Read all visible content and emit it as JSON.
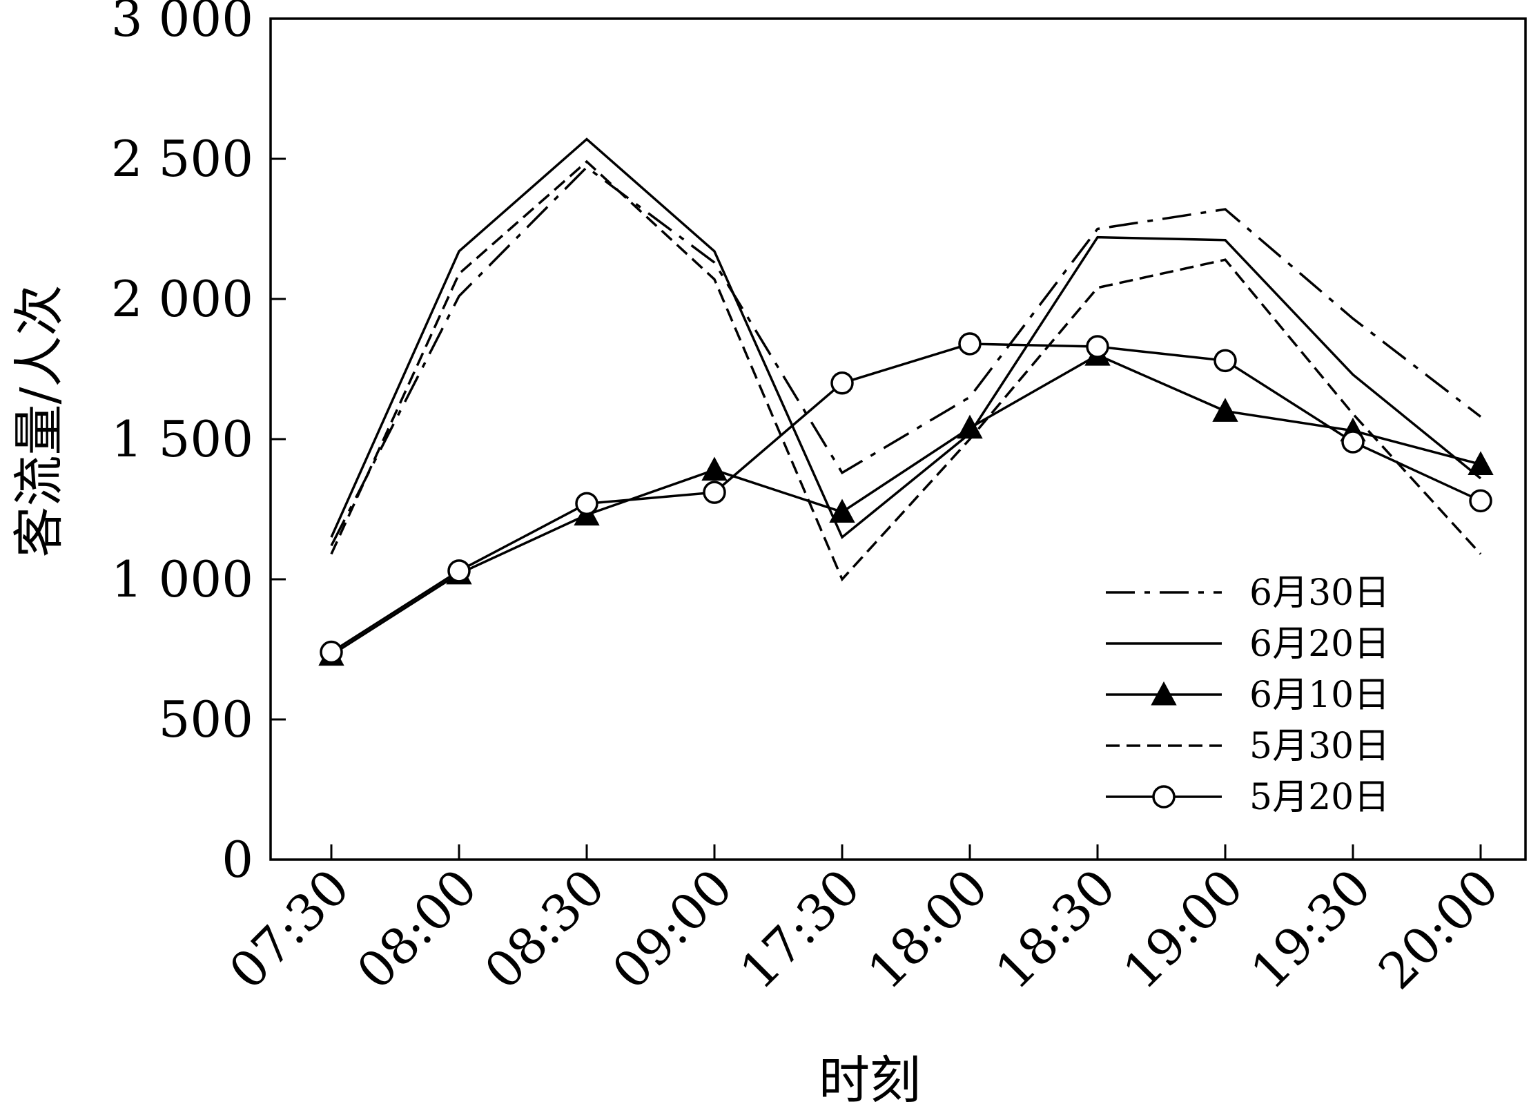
{
  "chart_data": {
    "type": "line",
    "title": "",
    "xlabel": "时刻",
    "ylabel": "客流量/人次",
    "categories": [
      "07:30",
      "08:00",
      "08:30",
      "09:00",
      "17:30",
      "18:00",
      "18:30",
      "19:00",
      "19:30",
      "20:00"
    ],
    "ylim": [
      0,
      3000
    ],
    "yticks": [
      0,
      500,
      1000,
      1500,
      2000,
      2500,
      3000
    ],
    "ytick_labels": [
      "0",
      "500",
      "1 000",
      "1 500",
      "2 000",
      "2 500",
      "3 000"
    ],
    "grid": false,
    "legend_position": "bottom-right",
    "series": [
      {
        "name": "6月30日",
        "style": "dashdot",
        "marker": "none",
        "values": [
          1120,
          2010,
          2470,
          2130,
          1380,
          1650,
          2250,
          2320,
          1930,
          1580
        ]
      },
      {
        "name": "6月20日",
        "style": "solid",
        "marker": "none",
        "values": [
          1150,
          2170,
          2570,
          2170,
          1150,
          1520,
          2220,
          2210,
          1730,
          1360
        ]
      },
      {
        "name": "6月10日",
        "style": "solid",
        "marker": "triangle",
        "values": [
          730,
          1020,
          1230,
          1390,
          1240,
          1540,
          1800,
          1600,
          1530,
          1410
        ]
      },
      {
        "name": "5月30日",
        "style": "dashed",
        "marker": "none",
        "values": [
          1090,
          2090,
          2490,
          2070,
          1000,
          1500,
          2040,
          2140,
          1590,
          1090
        ]
      },
      {
        "name": "5月20日",
        "style": "solid",
        "marker": "circle",
        "values": [
          740,
          1030,
          1270,
          1310,
          1700,
          1840,
          1830,
          1780,
          1490,
          1280
        ]
      }
    ]
  }
}
